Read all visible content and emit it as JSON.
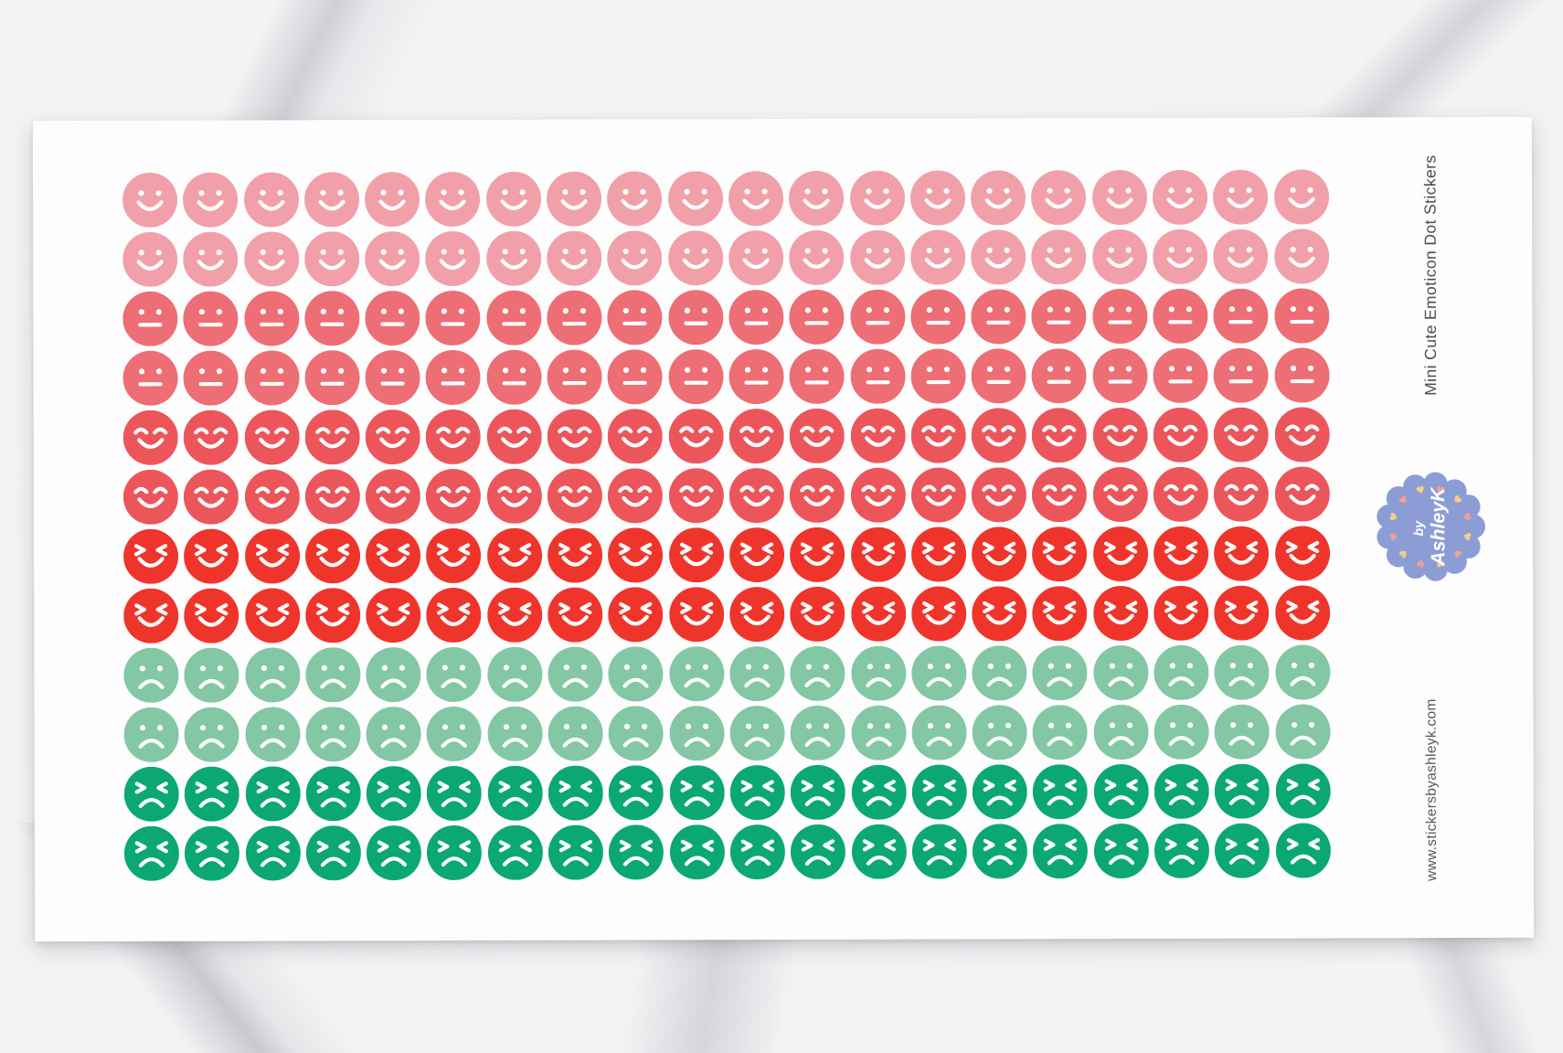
{
  "product": {
    "title": "Mini Cute Emoticon Dot Stickers",
    "website": "www.stickersbyashleyk.com",
    "badge_line1": "by",
    "badge_line2": "AshleyK"
  },
  "sticker_sheet": {
    "columns": 20,
    "rows": [
      {
        "face": "smile",
        "label": "light pink smiley",
        "color": "#F1A0AA"
      },
      {
        "face": "smile",
        "label": "light pink smiley",
        "color": "#F1A0AA"
      },
      {
        "face": "neutral",
        "label": "pink neutral face",
        "color": "#ED6E74"
      },
      {
        "face": "neutral",
        "label": "pink neutral face",
        "color": "#ED6E74"
      },
      {
        "face": "happy",
        "label": "salmon happy face",
        "color": "#EC565B"
      },
      {
        "face": "happy",
        "label": "salmon happy face",
        "color": "#EC565B"
      },
      {
        "face": "wink",
        "label": "red laughing face",
        "color": "#EF352B"
      },
      {
        "face": "wink",
        "label": "red laughing face",
        "color": "#EF352B"
      },
      {
        "face": "sad",
        "label": "soft green sad face",
        "color": "#83C7A4"
      },
      {
        "face": "sad",
        "label": "soft green sad face",
        "color": "#83C7A4"
      },
      {
        "face": "angry",
        "label": "green scrunched face",
        "color": "#0CA873"
      },
      {
        "face": "angry",
        "label": "green scrunched face",
        "color": "#0CA873"
      }
    ]
  },
  "colors": {
    "sheet": "#FDFDFE",
    "title_text": "#4C4C4C",
    "website_text": "#585858",
    "badge_background": "#8C9DD6",
    "badge_text": "#FFFFFF",
    "heart_yellow": "#F5CF83",
    "heart_pink": "#F0A096",
    "face_features": "#FFFFFF"
  }
}
